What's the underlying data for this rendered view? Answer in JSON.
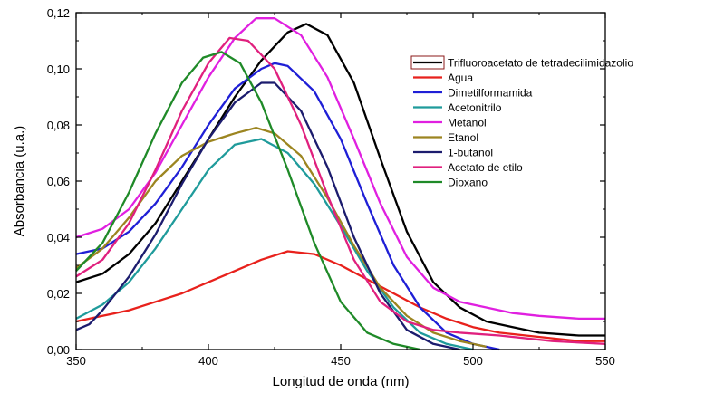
{
  "chart_data": {
    "type": "line",
    "xlabel": "Longitud de onda (nm)",
    "ylabel": "Absorbancia (u.a.)",
    "xlim": [
      350,
      550
    ],
    "ylim": [
      0.0,
      0.12
    ],
    "x_ticks": [
      "350",
      "400",
      "450",
      "500",
      "550"
    ],
    "y_ticks": [
      "0,00",
      "0,02",
      "0,04",
      "0,06",
      "0,08",
      "0,10",
      "0,12"
    ],
    "legend_position": "top-right",
    "series": [
      {
        "name": "Trifluoroacetato de tetradecilimidazolio",
        "color": "#000000",
        "points": [
          [
            350,
            0.024
          ],
          [
            360,
            0.027
          ],
          [
            370,
            0.034
          ],
          [
            380,
            0.045
          ],
          [
            390,
            0.06
          ],
          [
            400,
            0.075
          ],
          [
            410,
            0.09
          ],
          [
            420,
            0.103
          ],
          [
            430,
            0.113
          ],
          [
            437,
            0.116
          ],
          [
            445,
            0.112
          ],
          [
            455,
            0.095
          ],
          [
            465,
            0.068
          ],
          [
            475,
            0.042
          ],
          [
            485,
            0.024
          ],
          [
            495,
            0.015
          ],
          [
            505,
            0.01
          ],
          [
            515,
            0.008
          ],
          [
            525,
            0.006
          ],
          [
            540,
            0.005
          ],
          [
            550,
            0.005
          ]
        ]
      },
      {
        "name": "Agua",
        "color": "#e8211c",
        "points": [
          [
            350,
            0.01
          ],
          [
            360,
            0.012
          ],
          [
            370,
            0.014
          ],
          [
            380,
            0.017
          ],
          [
            390,
            0.02
          ],
          [
            400,
            0.024
          ],
          [
            410,
            0.028
          ],
          [
            420,
            0.032
          ],
          [
            430,
            0.035
          ],
          [
            440,
            0.034
          ],
          [
            450,
            0.03
          ],
          [
            460,
            0.025
          ],
          [
            470,
            0.02
          ],
          [
            480,
            0.015
          ],
          [
            490,
            0.011
          ],
          [
            500,
            0.008
          ],
          [
            510,
            0.006
          ],
          [
            520,
            0.005
          ],
          [
            530,
            0.004
          ],
          [
            540,
            0.003
          ],
          [
            550,
            0.003
          ]
        ]
      },
      {
        "name": "Dimetilformamida",
        "color": "#1f1fd6",
        "points": [
          [
            350,
            0.034
          ],
          [
            360,
            0.036
          ],
          [
            370,
            0.042
          ],
          [
            380,
            0.052
          ],
          [
            390,
            0.065
          ],
          [
            400,
            0.08
          ],
          [
            410,
            0.093
          ],
          [
            420,
            0.1
          ],
          [
            425,
            0.102
          ],
          [
            430,
            0.101
          ],
          [
            440,
            0.092
          ],
          [
            450,
            0.075
          ],
          [
            460,
            0.052
          ],
          [
            470,
            0.03
          ],
          [
            480,
            0.015
          ],
          [
            490,
            0.006
          ],
          [
            500,
            0.002
          ],
          [
            510,
            0.0
          ]
        ]
      },
      {
        "name": "Acetonitrilo",
        "color": "#1f9b9b",
        "points": [
          [
            350,
            0.011
          ],
          [
            360,
            0.016
          ],
          [
            370,
            0.024
          ],
          [
            380,
            0.036
          ],
          [
            390,
            0.05
          ],
          [
            400,
            0.064
          ],
          [
            410,
            0.073
          ],
          [
            420,
            0.075
          ],
          [
            430,
            0.07
          ],
          [
            440,
            0.059
          ],
          [
            450,
            0.044
          ],
          [
            460,
            0.028
          ],
          [
            470,
            0.015
          ],
          [
            480,
            0.006
          ],
          [
            490,
            0.002
          ],
          [
            500,
            0.0
          ]
        ]
      },
      {
        "name": "Metanol",
        "color": "#e020e0",
        "points": [
          [
            350,
            0.04
          ],
          [
            360,
            0.043
          ],
          [
            370,
            0.05
          ],
          [
            380,
            0.063
          ],
          [
            390,
            0.08
          ],
          [
            400,
            0.097
          ],
          [
            410,
            0.111
          ],
          [
            418,
            0.118
          ],
          [
            425,
            0.118
          ],
          [
            435,
            0.112
          ],
          [
            445,
            0.097
          ],
          [
            455,
            0.075
          ],
          [
            465,
            0.052
          ],
          [
            475,
            0.033
          ],
          [
            485,
            0.022
          ],
          [
            495,
            0.017
          ],
          [
            505,
            0.015
          ],
          [
            515,
            0.013
          ],
          [
            525,
            0.012
          ],
          [
            540,
            0.011
          ],
          [
            550,
            0.011
          ]
        ]
      },
      {
        "name": "Etanol",
        "color": "#9c8520",
        "points": [
          [
            350,
            0.029
          ],
          [
            360,
            0.036
          ],
          [
            370,
            0.047
          ],
          [
            380,
            0.06
          ],
          [
            390,
            0.069
          ],
          [
            400,
            0.074
          ],
          [
            410,
            0.077
          ],
          [
            418,
            0.079
          ],
          [
            425,
            0.077
          ],
          [
            435,
            0.069
          ],
          [
            445,
            0.054
          ],
          [
            455,
            0.037
          ],
          [
            465,
            0.022
          ],
          [
            475,
            0.012
          ],
          [
            485,
            0.006
          ],
          [
            495,
            0.003
          ],
          [
            505,
            0.001
          ]
        ]
      },
      {
        "name": "1-butanol",
        "color": "#1c1c6e",
        "points": [
          [
            350,
            0.007
          ],
          [
            355,
            0.009
          ],
          [
            360,
            0.014
          ],
          [
            370,
            0.026
          ],
          [
            380,
            0.041
          ],
          [
            390,
            0.059
          ],
          [
            400,
            0.075
          ],
          [
            410,
            0.088
          ],
          [
            420,
            0.095
          ],
          [
            425,
            0.095
          ],
          [
            435,
            0.085
          ],
          [
            445,
            0.065
          ],
          [
            455,
            0.04
          ],
          [
            465,
            0.02
          ],
          [
            475,
            0.007
          ],
          [
            485,
            0.002
          ],
          [
            495,
            0.0
          ]
        ]
      },
      {
        "name": "Acetato de etilo",
        "color": "#e0207e",
        "points": [
          [
            350,
            0.026
          ],
          [
            360,
            0.032
          ],
          [
            370,
            0.045
          ],
          [
            380,
            0.064
          ],
          [
            390,
            0.085
          ],
          [
            400,
            0.102
          ],
          [
            408,
            0.111
          ],
          [
            415,
            0.11
          ],
          [
            425,
            0.1
          ],
          [
            435,
            0.08
          ],
          [
            445,
            0.055
          ],
          [
            455,
            0.032
          ],
          [
            465,
            0.017
          ],
          [
            475,
            0.01
          ],
          [
            485,
            0.007
          ],
          [
            495,
            0.006
          ],
          [
            510,
            0.005
          ],
          [
            530,
            0.003
          ],
          [
            550,
            0.002
          ]
        ]
      },
      {
        "name": "Dioxano",
        "color": "#1f8a28",
        "points": [
          [
            350,
            0.028
          ],
          [
            360,
            0.038
          ],
          [
            370,
            0.056
          ],
          [
            380,
            0.077
          ],
          [
            390,
            0.095
          ],
          [
            398,
            0.104
          ],
          [
            405,
            0.106
          ],
          [
            412,
            0.102
          ],
          [
            420,
            0.088
          ],
          [
            430,
            0.064
          ],
          [
            440,
            0.038
          ],
          [
            450,
            0.017
          ],
          [
            460,
            0.006
          ],
          [
            470,
            0.002
          ],
          [
            480,
            0.0
          ]
        ]
      }
    ]
  }
}
